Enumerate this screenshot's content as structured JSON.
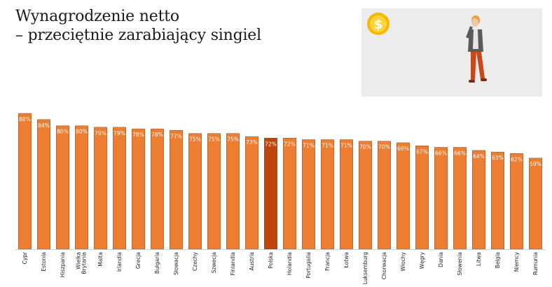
{
  "title_lines": [
    "Wynagrodzenie netto",
    "– przeciętnie zarabiający singiel"
  ],
  "illustration": {
    "coin_icon": "dollar-coin-icon",
    "figure": "person-on-phone-illustration"
  },
  "colors": {
    "bar": "#ED7D31",
    "highlight": "#C0450C",
    "label": "#ffffff"
  },
  "chart_data": {
    "type": "bar",
    "title": "",
    "xlabel": "",
    "ylabel": "",
    "ylim": [
      0,
      88
    ],
    "grid": false,
    "categories": [
      "Cypr",
      "Estonia",
      "Hiszpania",
      "Wielka Brytania",
      "Malta",
      "Irlandia",
      "Grecja",
      "Bułgaria",
      "Słowacja",
      "Czechy",
      "Szwecja",
      "Finlandia",
      "Austria",
      "Polska",
      "Holandia",
      "Portugalia",
      "Francja",
      "Łotwa",
      "Luksemburg",
      "Chorwacja",
      "Włochy",
      "Węgry",
      "Dania",
      "Słowenia",
      "Litwa",
      "Belgia",
      "Niemcy",
      "Rumunia"
    ],
    "values": [
      88,
      84,
      80,
      80,
      79,
      79,
      78,
      78,
      77,
      75,
      75,
      75,
      73,
      72,
      72,
      71,
      71,
      71,
      70,
      70,
      69,
      67,
      66,
      66,
      64,
      63,
      62,
      59
    ],
    "value_labels": [
      "88%",
      "84%",
      "80%",
      "80%",
      "79%",
      "79%",
      "78%",
      "78%",
      "77%",
      "75%",
      "75%",
      "75%",
      "73%",
      "72%",
      "72%",
      "71%",
      "71%",
      "71%",
      "70%",
      "70%",
      "69%",
      "67%",
      "66%",
      "66%",
      "64%",
      "63%",
      "62%",
      "59%"
    ],
    "highlight_category": "Polska"
  }
}
